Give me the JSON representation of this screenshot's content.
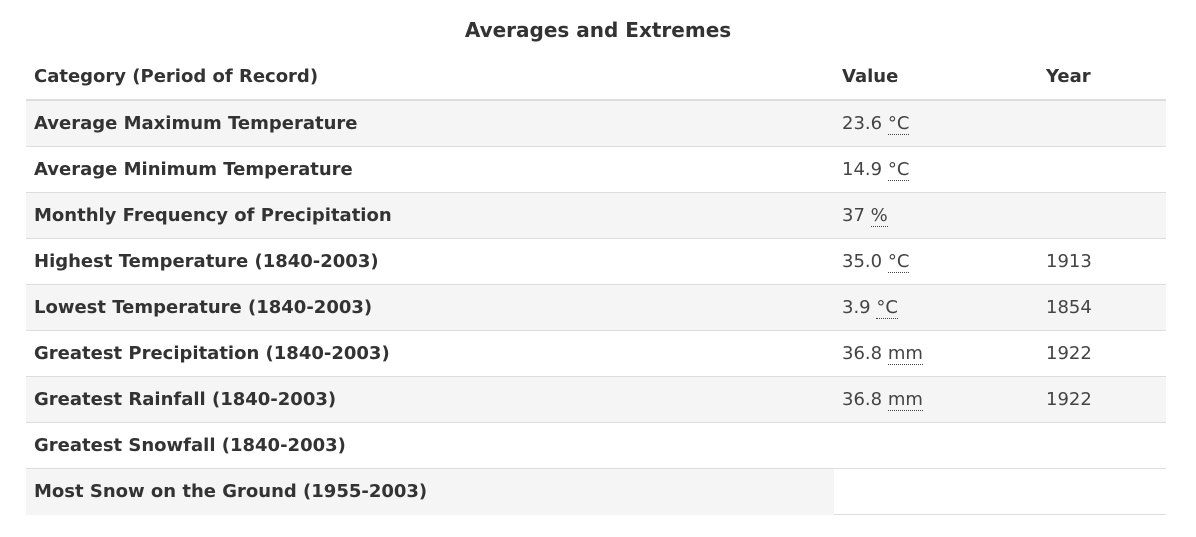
{
  "table": {
    "caption": "Averages and Extremes",
    "headers": {
      "category": "Category (Period of Record)",
      "value": "Value",
      "year": "Year"
    },
    "rows": [
      {
        "category": "Average Maximum Temperature",
        "value": "23.6",
        "unit": "°C",
        "year": ""
      },
      {
        "category": "Average Minimum Temperature",
        "value": "14.9",
        "unit": "°C",
        "year": ""
      },
      {
        "category": "Monthly Frequency of Precipitation",
        "value": "37",
        "unit": "%",
        "year": ""
      },
      {
        "category": "Highest Temperature (1840-2003)",
        "value": "35.0",
        "unit": "°C",
        "year": "1913"
      },
      {
        "category": "Lowest Temperature (1840-2003)",
        "value": "3.9",
        "unit": "°C",
        "year": "1854"
      },
      {
        "category": "Greatest Precipitation (1840-2003)",
        "value": "36.8",
        "unit": "mm",
        "year": "1922"
      },
      {
        "category": "Greatest Rainfall (1840-2003)",
        "value": "36.8",
        "unit": "mm",
        "year": "1922"
      },
      {
        "category": "Greatest Snowfall (1840-2003)",
        "value": "",
        "unit": "",
        "year": ""
      },
      {
        "category": "Most Snow on the Ground (1955-2003)",
        "value": "",
        "unit": "",
        "year": ""
      }
    ]
  }
}
